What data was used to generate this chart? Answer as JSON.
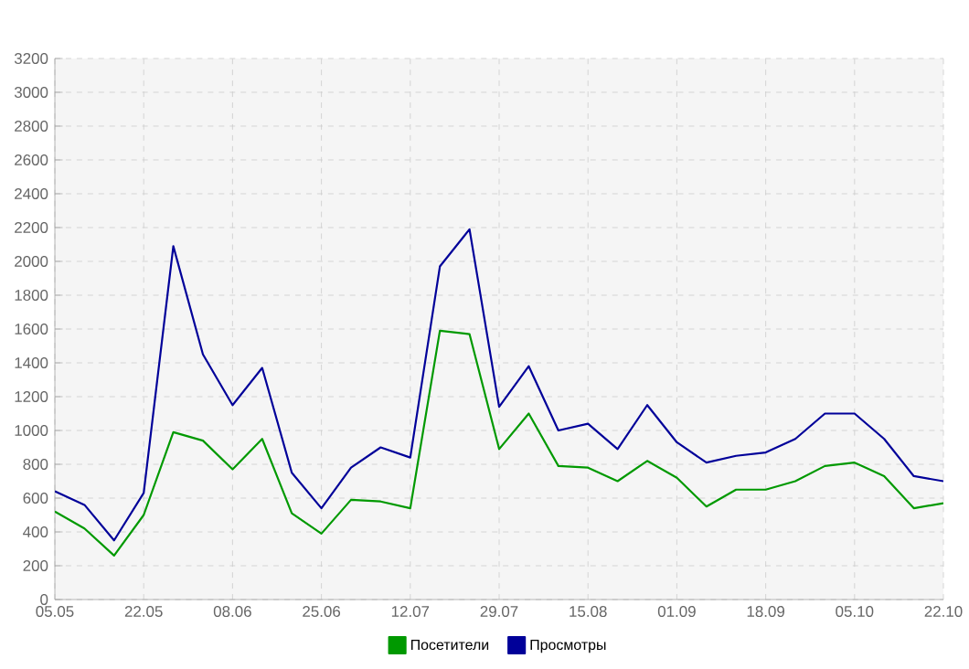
{
  "chart_data": {
    "type": "line",
    "categories": [
      "05.05",
      null,
      null,
      "22.05",
      null,
      null,
      "08.06",
      null,
      null,
      "25.06",
      null,
      null,
      "12.07",
      null,
      null,
      "29.07",
      null,
      null,
      "15.08",
      null,
      null,
      "01.09",
      null,
      null,
      "18.09",
      null,
      null,
      "05.10",
      null,
      null,
      "22.10"
    ],
    "series": [
      {
        "name": "Посетители",
        "color": "#009900",
        "values": [
          520,
          420,
          260,
          500,
          990,
          940,
          770,
          950,
          510,
          390,
          590,
          580,
          540,
          1590,
          1570,
          890,
          1100,
          790,
          780,
          700,
          820,
          720,
          550,
          650,
          650,
          700,
          790,
          810,
          730,
          540,
          570
        ]
      },
      {
        "name": "Просмотры",
        "color": "#000099",
        "values": [
          640,
          560,
          350,
          630,
          2090,
          1450,
          1150,
          1370,
          750,
          540,
          780,
          900,
          840,
          1970,
          2190,
          1140,
          1380,
          1000,
          1040,
          890,
          1150,
          930,
          810,
          850,
          870,
          950,
          1100,
          1100,
          950,
          730,
          700
        ]
      }
    ],
    "ylim": [
      0,
      3200
    ],
    "yticks": [
      0,
      200,
      400,
      600,
      800,
      1000,
      1200,
      1400,
      1600,
      1800,
      2000,
      2200,
      2400,
      2600,
      2800,
      3000,
      3200
    ],
    "grid": true,
    "legend": "bottom"
  }
}
